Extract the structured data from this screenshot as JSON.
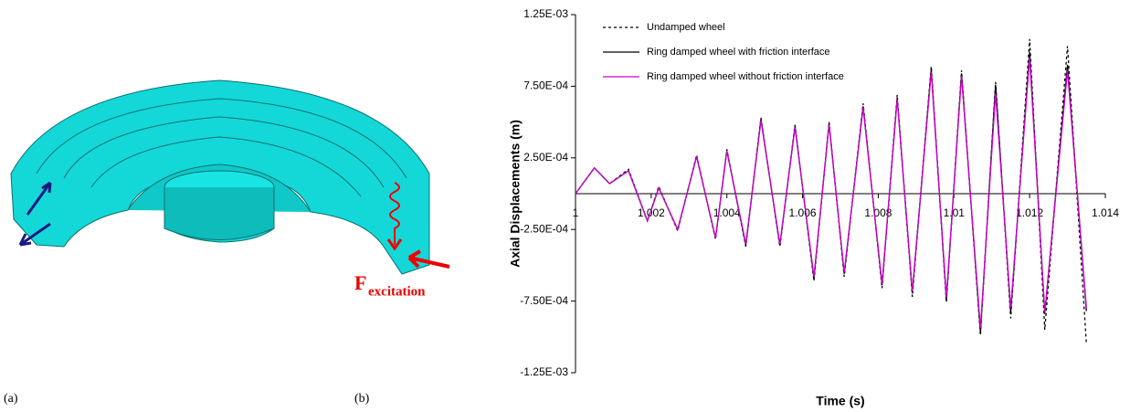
{
  "panel_a": {
    "label": "(a)",
    "force_symbol": "F",
    "force_subscript": "excitation"
  },
  "chart_data": {
    "type": "line",
    "panel_label": "(b)",
    "x_label": "Time (s)",
    "y_label": "Axial Displacements (m)",
    "x": [
      1.0,
      1.0005,
      1.0009,
      1.0014,
      1.0019,
      1.0022,
      1.0027,
      1.0032,
      1.0037,
      1.004,
      1.0045,
      1.0049,
      1.0054,
      1.0058,
      1.0063,
      1.0067,
      1.0071,
      1.0076,
      1.0081,
      1.0085,
      1.0089,
      1.0094,
      1.0098,
      1.0102,
      1.0107,
      1.0111,
      1.0115,
      1.012,
      1.0124,
      1.013,
      1.0135
    ],
    "series": [
      {
        "name": "Undamped wheel",
        "color": "#000000",
        "linestyle": "dashed",
        "values": [
          0,
          0.00018,
          7e-05,
          0.00017,
          -0.00019,
          5e-05,
          -0.00026,
          0.00027,
          -0.00032,
          0.00031,
          -0.00037,
          0.00053,
          -0.00037,
          0.00048,
          -0.00061,
          0.0005,
          -0.00058,
          0.00063,
          -0.00066,
          0.00069,
          -0.00072,
          0.00089,
          -0.00076,
          0.00086,
          -0.00099,
          0.00078,
          -0.00087,
          0.00108,
          -0.00095,
          0.00103,
          -0.00105
        ]
      },
      {
        "name": "Ring damped wheel with friction interface",
        "color": "#000000",
        "linestyle": "solid",
        "values": [
          0,
          0.00018,
          7e-05,
          0.00016,
          -0.00019,
          4e-05,
          -0.00025,
          0.00026,
          -0.00031,
          0.0003,
          -0.00036,
          0.00052,
          -0.00036,
          0.00047,
          -0.00059,
          0.00049,
          -0.00056,
          0.00061,
          -0.00064,
          0.00067,
          -0.00069,
          0.00087,
          -0.00074,
          0.00084,
          -0.00097,
          0.00076,
          -0.00083,
          0.00099,
          -0.00084,
          0.0009,
          -0.00082
        ]
      },
      {
        "name": "Ring damped wheel without friction interface",
        "color": "#cc00cc",
        "linestyle": "solid",
        "values": [
          0,
          0.00018,
          7e-05,
          0.00016,
          -0.00019,
          4e-05,
          -0.00025,
          0.00026,
          -0.00031,
          0.0003,
          -0.00035,
          0.00051,
          -0.00035,
          0.00046,
          -0.00058,
          0.00048,
          -0.00055,
          0.0006,
          -0.00063,
          0.00066,
          -0.00068,
          0.00085,
          -0.00072,
          0.00082,
          -0.00094,
          0.0007,
          -0.0008,
          0.00095,
          -0.00083,
          0.00086,
          -0.0008
        ]
      }
    ],
    "xlim": [
      1.0,
      1.014
    ],
    "xticks": [
      1,
      1.002,
      1.004,
      1.006,
      1.008,
      1.01,
      1.012,
      1.014
    ],
    "ylim": [
      -0.00125,
      0.00125
    ],
    "yticks": [
      {
        "value": -0.00125,
        "label": "-1.25E-03"
      },
      {
        "value": -0.00075,
        "label": "-7.50E-04"
      },
      {
        "value": -0.00025,
        "label": "-2.50E-04"
      },
      {
        "value": 0.00025,
        "label": "2.50E-04"
      },
      {
        "value": 0.00075,
        "label": "7.50E-04"
      },
      {
        "value": 0.00125,
        "label": "1.25E-03"
      }
    ],
    "grid": false,
    "legend": "upper left"
  }
}
